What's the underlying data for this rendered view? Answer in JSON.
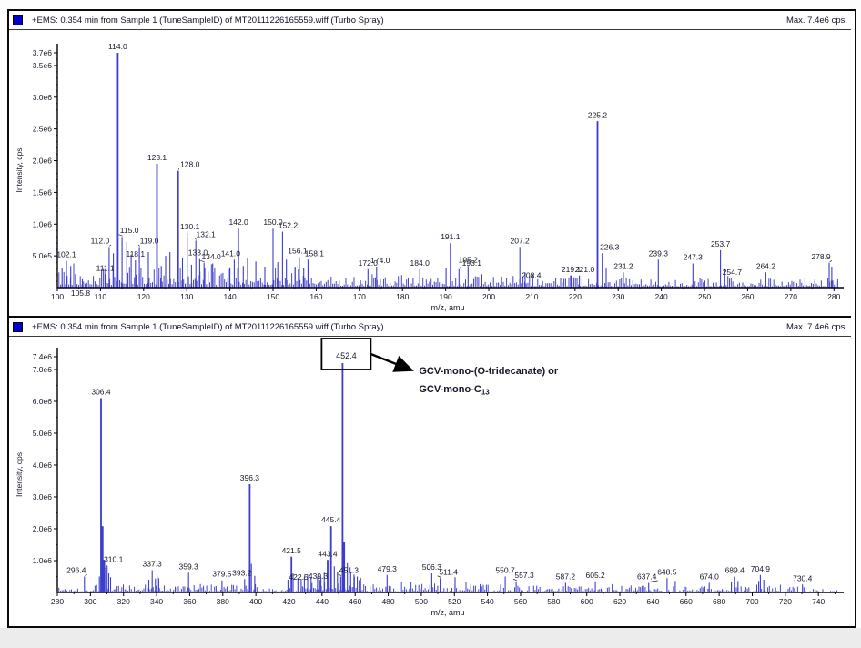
{
  "window": {
    "trace_color": "#3c3ccd",
    "accent_blue": "#0000cd"
  },
  "panels": [
    {
      "header": {
        "icon": "spectrum-icon",
        "title": "+EMS: 0.354 min from Sample 1 (TuneSampleID) of MT20111226165559.wiff (Turbo Spray)",
        "max_label": "Max. 7.4e6 cps."
      }
    },
    {
      "header": {
        "icon": "spectrum-icon",
        "title": "+EMS: 0.354 min from Sample 1 (TuneSampleID) of MT20111226165559.wiff (Turbo Spray)",
        "max_label": "Max. 7.4e6 cps."
      }
    }
  ],
  "chart_data": [
    {
      "type": "line",
      "subtype": "mass-spectrum",
      "title": "+EMS: 0.354 min from Sample 1 (TuneSampleID) of MT20111226165559.wiff (Turbo Spray)",
      "xlabel": "m/z, amu",
      "ylabel": "Intensity, cps",
      "xlim": [
        100,
        281
      ],
      "ylim": [
        0,
        3700000
      ],
      "xticks": [
        100,
        110,
        120,
        130,
        140,
        150,
        160,
        170,
        180,
        190,
        200,
        210,
        220,
        230,
        240,
        250,
        260,
        270,
        280
      ],
      "x_minor_step": 5,
      "yticks": [
        {
          "v": 3700000,
          "label": "3.7e6"
        },
        {
          "v": 3500000,
          "label": "3.5e6"
        },
        {
          "v": 3000000,
          "label": "3.0e6"
        },
        {
          "v": 2500000,
          "label": "2.5e6"
        },
        {
          "v": 2000000,
          "label": "2.0e6"
        },
        {
          "v": 1500000,
          "label": "1.5e6"
        },
        {
          "v": 1000000,
          "label": "1.0e6"
        },
        {
          "v": 500000,
          "label": "5.0e5"
        }
      ],
      "y_minor_step": 100000,
      "grid": false,
      "legend": "none",
      "noise": {
        "seed": 42,
        "step": 0.38,
        "regions": [
          [
            100,
            120,
            330000
          ],
          [
            120,
            136,
            380000
          ],
          [
            136,
            160,
            330000
          ],
          [
            160,
            186,
            215000
          ],
          [
            186,
            216,
            185000
          ],
          [
            216,
            281,
            165000
          ]
        ]
      },
      "peaks": [
        {
          "mz": 102.1,
          "i": 420000,
          "label": "102.1"
        },
        {
          "mz": 105.8,
          "i": 130000,
          "label": "105.8",
          "dx": -2,
          "dy": 22
        },
        {
          "mz": 111.1,
          "i": 210000,
          "label": "111.1"
        },
        {
          "mz": 112.0,
          "i": 640000,
          "label": "112.0",
          "dx": -10,
          "leader": true
        },
        {
          "mz": 114.0,
          "i": 3700000,
          "label": "114.0"
        },
        {
          "mz": 115.0,
          "i": 800000,
          "label": "115.0",
          "dx": 8,
          "leader": true
        },
        {
          "mz": 118.1,
          "i": 430000,
          "label": "118.1"
        },
        {
          "mz": 119.0,
          "i": 640000,
          "label": "119.0",
          "dx": 11,
          "leader": true
        },
        {
          "mz": 123.1,
          "i": 1950000,
          "label": "123.1"
        },
        {
          "mz": 128.0,
          "i": 1840000,
          "label": "128.0",
          "dx": 13,
          "leader": true
        },
        {
          "mz": 130.1,
          "i": 860000,
          "label": "130.1",
          "dx": 3
        },
        {
          "mz": 132.1,
          "i": 740000,
          "label": "132.1",
          "dx": 11,
          "leader": true
        },
        {
          "mz": 133.0,
          "i": 450000,
          "label": "133.0",
          "dx": -2
        },
        {
          "mz": 134.0,
          "i": 390000,
          "label": "134.0",
          "dx": 8,
          "leader": true
        },
        {
          "mz": 141.0,
          "i": 440000,
          "label": "141.0",
          "dx": -4
        },
        {
          "mz": 142.0,
          "i": 930000,
          "label": "142.0"
        },
        {
          "mz": 150.0,
          "i": 930000,
          "label": "150.0"
        },
        {
          "mz": 152.2,
          "i": 880000,
          "label": "152.2",
          "dx": 6
        },
        {
          "mz": 156.1,
          "i": 480000,
          "label": "156.1",
          "dx": -2
        },
        {
          "mz": 158.1,
          "i": 440000,
          "label": "158.1",
          "dx": 7
        },
        {
          "mz": 172.0,
          "i": 290000,
          "label": "172.0"
        },
        {
          "mz": 174.0,
          "i": 330000,
          "label": "174.0",
          "dx": 4
        },
        {
          "mz": 184.0,
          "i": 290000,
          "label": "184.0"
        },
        {
          "mz": 191.1,
          "i": 700000,
          "label": "191.1"
        },
        {
          "mz": 195.2,
          "i": 340000,
          "label": "195.2"
        },
        {
          "mz": 193.1,
          "i": 290000,
          "label": "193.1",
          "dx": 14,
          "leader": true
        },
        {
          "mz": 207.2,
          "i": 640000,
          "label": "207.2"
        },
        {
          "mz": 208.4,
          "i": 240000,
          "label": "208.4",
          "dx": 7,
          "dy": 10
        },
        {
          "mz": 219.1,
          "i": 190000,
          "label": "219.1"
        },
        {
          "mz": 221.0,
          "i": 190000,
          "label": "221.0",
          "dx": 6
        },
        {
          "mz": 225.2,
          "i": 2620000,
          "label": "225.2"
        },
        {
          "mz": 226.3,
          "i": 540000,
          "label": "226.3",
          "dx": 8
        },
        {
          "mz": 231.2,
          "i": 240000,
          "label": "231.2"
        },
        {
          "mz": 239.3,
          "i": 440000,
          "label": "239.3"
        },
        {
          "mz": 247.3,
          "i": 380000,
          "label": "247.3"
        },
        {
          "mz": 253.7,
          "i": 590000,
          "label": "253.7"
        },
        {
          "mz": 254.7,
          "i": 290000,
          "label": "254.7",
          "dx": 8,
          "dy": 10
        },
        {
          "mz": 264.2,
          "i": 240000,
          "label": "264.2"
        },
        {
          "mz": 278.9,
          "i": 390000,
          "label": "278.9",
          "dx": -9,
          "leader": true
        },
        {
          "mz": 101.1,
          "i": 300000,
          "label": ""
        },
        {
          "mz": 103.1,
          "i": 340000,
          "label": ""
        },
        {
          "mz": 113.0,
          "i": 540000,
          "label": ""
        },
        {
          "mz": 116.1,
          "i": 720000,
          "label": ""
        },
        {
          "mz": 117.1,
          "i": 520000,
          "label": ""
        },
        {
          "mz": 121.1,
          "i": 560000,
          "label": ""
        },
        {
          "mz": 124.1,
          "i": 340000,
          "label": ""
        },
        {
          "mz": 125.1,
          "i": 500000,
          "label": ""
        },
        {
          "mz": 126.1,
          "i": 560000,
          "label": ""
        },
        {
          "mz": 129.0,
          "i": 460000,
          "label": ""
        },
        {
          "mz": 131.1,
          "i": 360000,
          "label": ""
        },
        {
          "mz": 136.0,
          "i": 380000,
          "label": ""
        },
        {
          "mz": 140.0,
          "i": 320000,
          "label": ""
        },
        {
          "mz": 143.1,
          "i": 340000,
          "label": ""
        },
        {
          "mz": 144.1,
          "i": 460000,
          "label": ""
        },
        {
          "mz": 146.0,
          "i": 410000,
          "label": ""
        },
        {
          "mz": 148.1,
          "i": 330000,
          "label": ""
        },
        {
          "mz": 151.1,
          "i": 400000,
          "label": ""
        },
        {
          "mz": 153.1,
          "i": 440000,
          "label": ""
        },
        {
          "mz": 155.1,
          "i": 330000,
          "label": ""
        },
        {
          "mz": 157.1,
          "i": 310000,
          "label": ""
        },
        {
          "mz": 190.1,
          "i": 310000,
          "label": ""
        },
        {
          "mz": 227.2,
          "i": 300000,
          "label": ""
        },
        {
          "mz": 279.5,
          "i": 330000,
          "label": ""
        }
      ]
    },
    {
      "type": "line",
      "subtype": "mass-spectrum",
      "title": "+EMS: 0.354 min from Sample 1 (TuneSampleID) of MT20111226165559.wiff (Turbo Spray)",
      "xlabel": "m/z, amu",
      "ylabel": "Intensity, cps",
      "xlim": [
        280,
        752
      ],
      "ylim": [
        0,
        7400000
      ],
      "xticks": [
        280,
        300,
        320,
        340,
        360,
        380,
        400,
        420,
        440,
        460,
        480,
        500,
        520,
        540,
        560,
        580,
        600,
        620,
        640,
        660,
        680,
        700,
        720,
        740
      ],
      "x_minor_step": 10,
      "yticks": [
        {
          "v": 7400000,
          "label": "7.4e6"
        },
        {
          "v": 7000000,
          "label": "7.0e6"
        },
        {
          "v": 6000000,
          "label": "6.0e6"
        },
        {
          "v": 5000000,
          "label": "5.0e6"
        },
        {
          "v": 4000000,
          "label": "4.0e6"
        },
        {
          "v": 3000000,
          "label": "3.0e6"
        },
        {
          "v": 2000000,
          "label": "2.0e6"
        },
        {
          "v": 1000000,
          "label": "1.0e6"
        }
      ],
      "y_minor_step": 500000,
      "grid": false,
      "legend": "none",
      "noise": {
        "seed": 1337,
        "step": 0.95,
        "regions": [
          [
            280,
            300,
            230000
          ],
          [
            300,
            316,
            290000
          ],
          [
            316,
            430,
            270000
          ],
          [
            430,
            466,
            430000
          ],
          [
            466,
            550,
            280000
          ],
          [
            550,
            650,
            225000
          ],
          [
            650,
            752,
            210000
          ]
        ]
      },
      "annotation": {
        "boxed_label": "452.4",
        "text_line1": "GCV-mono-(O-tridecanate) or",
        "text_line2_main": "GCV-mono-C",
        "text_line2_sub": "13"
      },
      "peaks": [
        {
          "mz": 296.4,
          "i": 500000,
          "label": "296.4",
          "dx": -9,
          "leader": true
        },
        {
          "mz": 306.4,
          "i": 6100000,
          "label": "306.4"
        },
        {
          "mz": 310.1,
          "i": 850000,
          "label": "310.1",
          "dx": 7
        },
        {
          "mz": 337.3,
          "i": 700000,
          "label": "337.3"
        },
        {
          "mz": 359.3,
          "i": 620000,
          "label": "359.3"
        },
        {
          "mz": 379.5,
          "i": 380000,
          "label": "379.5"
        },
        {
          "mz": 393.2,
          "i": 420000,
          "label": "393.2",
          "dx": -3
        },
        {
          "mz": 396.3,
          "i": 3400000,
          "label": "396.3"
        },
        {
          "mz": 421.5,
          "i": 1120000,
          "label": "421.5"
        },
        {
          "mz": 422.5,
          "i": 600000,
          "label": "422.5",
          "dx": 6,
          "dy": 11
        },
        {
          "mz": 439.3,
          "i": 480000,
          "label": "439.3",
          "dx": -3,
          "dy": 6
        },
        {
          "mz": 443.4,
          "i": 1020000,
          "label": "443.4"
        },
        {
          "mz": 445.4,
          "i": 2080000,
          "label": "445.4"
        },
        {
          "mz": 451.3,
          "i": 500000,
          "label": "451.3",
          "dx": 9,
          "leader": true
        },
        {
          "mz": 452.4,
          "i": 7200000,
          "label": "452.4",
          "boxed": true
        },
        {
          "mz": 479.3,
          "i": 550000,
          "label": "479.3"
        },
        {
          "mz": 506.3,
          "i": 600000,
          "label": "506.3"
        },
        {
          "mz": 511.4,
          "i": 450000,
          "label": "511.4",
          "dx": 9,
          "leader": true
        },
        {
          "mz": 550.7,
          "i": 500000,
          "label": "550.7"
        },
        {
          "mz": 557.3,
          "i": 350000,
          "label": "557.3",
          "dx": 9,
          "leader": true
        },
        {
          "mz": 587.2,
          "i": 300000,
          "label": "587.2"
        },
        {
          "mz": 605.2,
          "i": 350000,
          "label": "605.2"
        },
        {
          "mz": 637.4,
          "i": 300000,
          "label": "637.4",
          "dx": -2,
          "leader": true
        },
        {
          "mz": 648.5,
          "i": 450000,
          "label": "648.5"
        },
        {
          "mz": 674.0,
          "i": 300000,
          "label": "674.0"
        },
        {
          "mz": 689.4,
          "i": 500000,
          "label": "689.4"
        },
        {
          "mz": 704.9,
          "i": 550000,
          "label": "704.9"
        },
        {
          "mz": 730.4,
          "i": 250000,
          "label": "730.4"
        },
        {
          "mz": 305.4,
          "i": 500000,
          "label": ""
        },
        {
          "mz": 307.4,
          "i": 2080000,
          "label": ""
        },
        {
          "mz": 308.4,
          "i": 1020000,
          "label": ""
        },
        {
          "mz": 309.3,
          "i": 780000,
          "label": ""
        },
        {
          "mz": 311.1,
          "i": 600000,
          "label": ""
        },
        {
          "mz": 312.2,
          "i": 480000,
          "label": ""
        },
        {
          "mz": 335.3,
          "i": 400000,
          "label": ""
        },
        {
          "mz": 339.3,
          "i": 440000,
          "label": ""
        },
        {
          "mz": 340.3,
          "i": 520000,
          "label": ""
        },
        {
          "mz": 341.3,
          "i": 450000,
          "label": ""
        },
        {
          "mz": 397.3,
          "i": 900000,
          "label": ""
        },
        {
          "mz": 399.3,
          "i": 520000,
          "label": ""
        },
        {
          "mz": 419.4,
          "i": 400000,
          "label": ""
        },
        {
          "mz": 425.4,
          "i": 460000,
          "label": ""
        },
        {
          "mz": 427.4,
          "i": 420000,
          "label": ""
        },
        {
          "mz": 429.3,
          "i": 500000,
          "label": ""
        },
        {
          "mz": 431.3,
          "i": 550000,
          "label": ""
        },
        {
          "mz": 433.4,
          "i": 460000,
          "label": ""
        },
        {
          "mz": 437.3,
          "i": 500000,
          "label": ""
        },
        {
          "mz": 441.3,
          "i": 620000,
          "label": ""
        },
        {
          "mz": 447.4,
          "i": 820000,
          "label": ""
        },
        {
          "mz": 449.3,
          "i": 660000,
          "label": ""
        },
        {
          "mz": 453.4,
          "i": 1600000,
          "label": ""
        },
        {
          "mz": 455.3,
          "i": 920000,
          "label": ""
        },
        {
          "mz": 457.3,
          "i": 620000,
          "label": ""
        },
        {
          "mz": 459.3,
          "i": 560000,
          "label": ""
        },
        {
          "mz": 461.3,
          "i": 500000,
          "label": ""
        },
        {
          "mz": 463.3,
          "i": 460000,
          "label": ""
        },
        {
          "mz": 520.4,
          "i": 480000,
          "label": ""
        },
        {
          "mz": 653.5,
          "i": 360000,
          "label": ""
        },
        {
          "mz": 687.4,
          "i": 340000,
          "label": ""
        },
        {
          "mz": 691.4,
          "i": 360000,
          "label": ""
        },
        {
          "mz": 703.9,
          "i": 360000,
          "label": ""
        },
        {
          "mz": 707.0,
          "i": 400000,
          "label": ""
        }
      ]
    }
  ]
}
